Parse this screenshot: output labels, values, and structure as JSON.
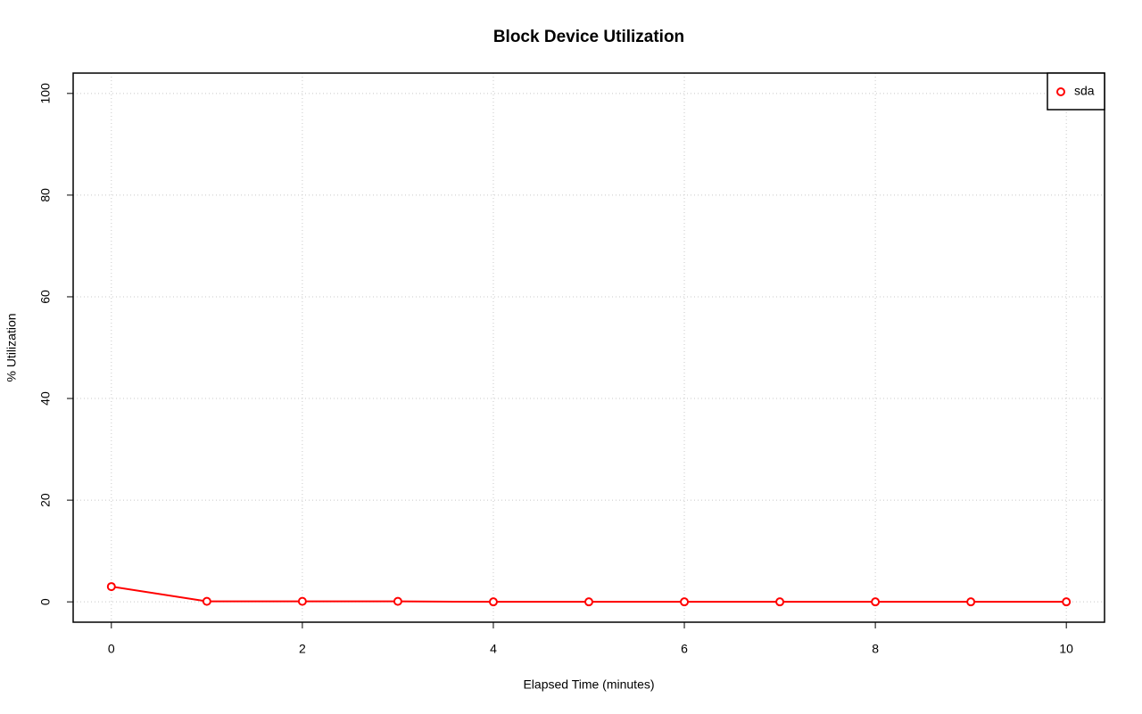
{
  "chart_data": {
    "type": "line",
    "title": "Block Device Utilization",
    "x_label": "Elapsed Time (minutes)",
    "y_label": "% Utilization",
    "x": [
      0,
      1,
      2,
      3,
      4,
      5,
      6,
      7,
      8,
      9,
      10
    ],
    "series": [
      {
        "name": "sda",
        "color": "#ff0000",
        "values": [
          3,
          0.1,
          0.1,
          0.1,
          0,
          0,
          0,
          0,
          0,
          0,
          0
        ]
      }
    ],
    "xlim": [
      -0.4,
      10.4
    ],
    "xticks": [
      0,
      2,
      4,
      6,
      8,
      10
    ],
    "ylim": [
      -4,
      104
    ],
    "yticks": [
      0,
      20,
      40,
      60,
      80,
      100
    ],
    "grid": true,
    "legend": "topright"
  }
}
